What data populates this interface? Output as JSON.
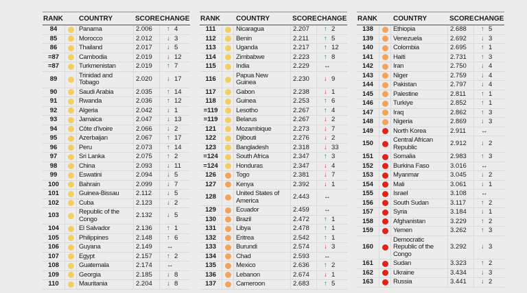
{
  "columns": {
    "rank": "RANK",
    "country": "COUNTRY",
    "score": "SCORE",
    "change": "CHANGE"
  },
  "colors": {
    "background": "#ececec",
    "dot_yellow": "#f3cf63",
    "dot_orange": "#f2a45c",
    "dot_red": "#e2231b",
    "arrow_up": "#17805c",
    "arrow_down": "#c5242b",
    "arrow_same": "#141414"
  },
  "change_icons": {
    "up": "↑",
    "down": "↓",
    "same": "↔"
  },
  "tables": [
    {
      "rows": [
        {
          "rank": "84",
          "dot": "yellow",
          "country": "Panama",
          "score": "2.006",
          "dir": "up",
          "delta": "4"
        },
        {
          "rank": "85",
          "dot": "yellow",
          "country": "Morocco",
          "score": "2.012",
          "dir": "down",
          "delta": "3"
        },
        {
          "rank": "86",
          "dot": "yellow",
          "country": "Thailand",
          "score": "2.017",
          "dir": "down",
          "delta": "5"
        },
        {
          "rank": "=87",
          "dot": "yellow",
          "country": "Cambodia",
          "score": "2.019",
          "dir": "down",
          "delta": "12"
        },
        {
          "rank": "=87",
          "dot": "yellow",
          "country": "Turkmenistan",
          "score": "2.019",
          "dir": "up",
          "delta": "7"
        },
        {
          "rank": "89",
          "dot": "yellow",
          "country": "Trinidad and Tobago",
          "score": "2.020",
          "dir": "down",
          "delta": "17"
        },
        {
          "rank": "90",
          "dot": "yellow",
          "country": "Saudi Arabia",
          "score": "2.035",
          "dir": "up",
          "delta": "14"
        },
        {
          "rank": "91",
          "dot": "yellow",
          "country": "Rwanda",
          "score": "2.036",
          "dir": "up",
          "delta": "12"
        },
        {
          "rank": "92",
          "dot": "yellow",
          "country": "Algeria",
          "score": "2.042",
          "dir": "down",
          "delta": "1"
        },
        {
          "rank": "93",
          "dot": "yellow",
          "country": "Jamaica",
          "score": "2.047",
          "dir": "down",
          "delta": "13"
        },
        {
          "rank": "94",
          "dot": "yellow",
          "country": "Côte d'Ivoire",
          "score": "2.066",
          "dir": "down",
          "delta": "2"
        },
        {
          "rank": "95",
          "dot": "yellow",
          "country": "Azerbaijan",
          "score": "2.067",
          "dir": "up",
          "delta": "17"
        },
        {
          "rank": "96",
          "dot": "yellow",
          "country": "Peru",
          "score": "2.073",
          "dir": "up",
          "delta": "14"
        },
        {
          "rank": "97",
          "dot": "yellow",
          "country": "Sri Lanka",
          "score": "2.075",
          "dir": "up",
          "delta": "2"
        },
        {
          "rank": "98",
          "dot": "yellow",
          "country": "China",
          "score": "2.093",
          "dir": "down",
          "delta": "11"
        },
        {
          "rank": "99",
          "dot": "yellow",
          "country": "Eswatini",
          "score": "2.094",
          "dir": "down",
          "delta": "5"
        },
        {
          "rank": "100",
          "dot": "yellow",
          "country": "Bahrain",
          "score": "2.099",
          "dir": "down",
          "delta": "7"
        },
        {
          "rank": "101",
          "dot": "yellow",
          "country": "Guinea-Bissau",
          "score": "2.112",
          "dir": "down",
          "delta": "5"
        },
        {
          "rank": "102",
          "dot": "yellow",
          "country": "Cuba",
          "score": "2.123",
          "dir": "down",
          "delta": "2"
        },
        {
          "rank": "103",
          "dot": "yellow",
          "country": "Republic of the Congo",
          "score": "2.132",
          "dir": "down",
          "delta": "5"
        },
        {
          "rank": "104",
          "dot": "yellow",
          "country": "El Salvador",
          "score": "2.136",
          "dir": "up",
          "delta": "1"
        },
        {
          "rank": "105",
          "dot": "yellow",
          "country": "Philippines",
          "score": "2.148",
          "dir": "up",
          "delta": "6"
        },
        {
          "rank": "106",
          "dot": "yellow",
          "country": "Guyana",
          "score": "2.149",
          "dir": "same",
          "delta": ""
        },
        {
          "rank": "107",
          "dot": "yellow",
          "country": "Egypt",
          "score": "2.157",
          "dir": "up",
          "delta": "2"
        },
        {
          "rank": "108",
          "dot": "yellow",
          "country": "Guatemala",
          "score": "2.174",
          "dir": "same",
          "delta": ""
        },
        {
          "rank": "109",
          "dot": "yellow",
          "country": "Georgia",
          "score": "2.185",
          "dir": "down",
          "delta": "8"
        },
        {
          "rank": "110",
          "dot": "yellow",
          "country": "Mauritania",
          "score": "2.204",
          "dir": "down",
          "delta": "8"
        }
      ]
    },
    {
      "rows": [
        {
          "rank": "111",
          "dot": "yellow",
          "country": "Nicaragua",
          "score": "2.207",
          "dir": "up",
          "delta": "2"
        },
        {
          "rank": "112",
          "dot": "yellow",
          "country": "Benin",
          "score": "2.211",
          "dir": "up",
          "delta": "5"
        },
        {
          "rank": "113",
          "dot": "yellow",
          "country": "Uganda",
          "score": "2.217",
          "dir": "up",
          "delta": "12"
        },
        {
          "rank": "114",
          "dot": "yellow",
          "country": "Zimbabwe",
          "score": "2.223",
          "dir": "up",
          "delta": "8"
        },
        {
          "rank": "115",
          "dot": "yellow",
          "country": "India",
          "score": "2.229",
          "dir": "same",
          "delta": ""
        },
        {
          "rank": "116",
          "dot": "yellow",
          "country": "Papua New Guinea",
          "score": "2.230",
          "dir": "down",
          "delta": "9"
        },
        {
          "rank": "117",
          "dot": "yellow",
          "country": "Gabon",
          "score": "2.238",
          "dir": "down",
          "delta": "1"
        },
        {
          "rank": "118",
          "dot": "yellow",
          "country": "Guinea",
          "score": "2.253",
          "dir": "up",
          "delta": "6"
        },
        {
          "rank": "=119",
          "dot": "yellow",
          "country": "Lesotho",
          "score": "2.267",
          "dir": "up",
          "delta": "4"
        },
        {
          "rank": "=119",
          "dot": "yellow",
          "country": "Belarus",
          "score": "2.267",
          "dir": "down",
          "delta": "2"
        },
        {
          "rank": "121",
          "dot": "yellow",
          "country": "Mozambique",
          "score": "2.273",
          "dir": "down",
          "delta": "7"
        },
        {
          "rank": "122",
          "dot": "yellow",
          "country": "Djibouti",
          "score": "2.276",
          "dir": "down",
          "delta": "2"
        },
        {
          "rank": "123",
          "dot": "yellow",
          "country": "Bangladesh",
          "score": "2.318",
          "dir": "down",
          "delta": "33"
        },
        {
          "rank": "=124",
          "dot": "yellow",
          "country": "South Africa",
          "score": "2.347",
          "dir": "up",
          "delta": "3"
        },
        {
          "rank": "=124",
          "dot": "yellow",
          "country": "Honduras",
          "score": "2.347",
          "dir": "down",
          "delta": "4"
        },
        {
          "rank": "126",
          "dot": "orange",
          "country": "Togo",
          "score": "2.381",
          "dir": "down",
          "delta": "7"
        },
        {
          "rank": "127",
          "dot": "orange",
          "country": "Kenya",
          "score": "2.392",
          "dir": "down",
          "delta": "1"
        },
        {
          "rank": "128",
          "dot": "orange",
          "country": "United States of America",
          "score": "2.443",
          "dir": "same",
          "delta": ""
        },
        {
          "rank": "129",
          "dot": "orange",
          "country": "Ecuador",
          "score": "2.459",
          "dir": "same",
          "delta": ""
        },
        {
          "rank": "130",
          "dot": "orange",
          "country": "Brazil",
          "score": "2.472",
          "dir": "up",
          "delta": "1"
        },
        {
          "rank": "131",
          "dot": "orange",
          "country": "Libya",
          "score": "2.478",
          "dir": "up",
          "delta": "1"
        },
        {
          "rank": "132",
          "dot": "orange",
          "country": "Eritrea",
          "score": "2.542",
          "dir": "up",
          "delta": "1"
        },
        {
          "rank": "133",
          "dot": "orange",
          "country": "Burundi",
          "score": "2.574",
          "dir": "down",
          "delta": "3"
        },
        {
          "rank": "134",
          "dot": "orange",
          "country": "Chad",
          "score": "2.593",
          "dir": "same",
          "delta": ""
        },
        {
          "rank": "135",
          "dot": "orange",
          "country": "Mexico",
          "score": "2.636",
          "dir": "up",
          "delta": "2"
        },
        {
          "rank": "136",
          "dot": "orange",
          "country": "Lebanon",
          "score": "2.674",
          "dir": "down",
          "delta": "1"
        },
        {
          "rank": "137",
          "dot": "orange",
          "country": "Cameroon",
          "score": "2.683",
          "dir": "up",
          "delta": "5"
        }
      ]
    },
    {
      "rows": [
        {
          "rank": "138",
          "dot": "orange",
          "country": "Ethiopia",
          "score": "2.688",
          "dir": "up",
          "delta": "5"
        },
        {
          "rank": "139",
          "dot": "orange",
          "country": "Venezuela",
          "score": "2.692",
          "dir": "down",
          "delta": "3"
        },
        {
          "rank": "140",
          "dot": "orange",
          "country": "Colombia",
          "score": "2.695",
          "dir": "up",
          "delta": "1"
        },
        {
          "rank": "141",
          "dot": "orange",
          "country": "Haiti",
          "score": "2.731",
          "dir": "up",
          "delta": "3"
        },
        {
          "rank": "142",
          "dot": "orange",
          "country": "Iran",
          "score": "2.750",
          "dir": "down",
          "delta": "4"
        },
        {
          "rank": "143",
          "dot": "orange",
          "country": "Niger",
          "score": "2.759",
          "dir": "down",
          "delta": "4"
        },
        {
          "rank": "144",
          "dot": "orange",
          "country": "Pakistan",
          "score": "2.797",
          "dir": "down",
          "delta": "4"
        },
        {
          "rank": "145",
          "dot": "orange",
          "country": "Palestine",
          "score": "2.811",
          "dir": "up",
          "delta": "1"
        },
        {
          "rank": "146",
          "dot": "orange",
          "country": "Turkiye",
          "score": "2.852",
          "dir": "up",
          "delta": "1"
        },
        {
          "rank": "147",
          "dot": "orange",
          "country": "Iraq",
          "score": "2.862",
          "dir": "up",
          "delta": "3"
        },
        {
          "rank": "148",
          "dot": "orange",
          "country": "Nigeria",
          "score": "2.869",
          "dir": "down",
          "delta": "3"
        },
        {
          "rank": "149",
          "dot": "red",
          "country": "North Korea",
          "score": "2.911",
          "dir": "same",
          "delta": ""
        },
        {
          "rank": "150",
          "dot": "red",
          "country": "Central African Republic",
          "score": "2.912",
          "dir": "down",
          "delta": "2"
        },
        {
          "rank": "151",
          "dot": "red",
          "country": "Somalia",
          "score": "2.983",
          "dir": "up",
          "delta": "3"
        },
        {
          "rank": "152",
          "dot": "red",
          "country": "Burkina Faso",
          "score": "3.016",
          "dir": "same",
          "delta": ""
        },
        {
          "rank": "153",
          "dot": "red",
          "country": "Myanmar",
          "score": "3.045",
          "dir": "down",
          "delta": "2"
        },
        {
          "rank": "154",
          "dot": "red",
          "country": "Mali",
          "score": "3.061",
          "dir": "down",
          "delta": "1"
        },
        {
          "rank": "155",
          "dot": "red",
          "country": "Israel",
          "score": "3.108",
          "dir": "same",
          "delta": ""
        },
        {
          "rank": "156",
          "dot": "red",
          "country": "South Sudan",
          "score": "3.117",
          "dir": "up",
          "delta": "2"
        },
        {
          "rank": "157",
          "dot": "red",
          "country": "Syria",
          "score": "3.184",
          "dir": "down",
          "delta": "1"
        },
        {
          "rank": "158",
          "dot": "red",
          "country": "Afghanistan",
          "score": "3.229",
          "dir": "up",
          "delta": "2"
        },
        {
          "rank": "159",
          "dot": "red",
          "country": "Yemen",
          "score": "3.262",
          "dir": "up",
          "delta": "3"
        },
        {
          "rank": "160",
          "dot": "red",
          "country": "Democratic Republic of the Congo",
          "score": "3.292",
          "dir": "down",
          "delta": "3"
        },
        {
          "rank": "161",
          "dot": "red",
          "country": "Sudan",
          "score": "3.323",
          "dir": "up",
          "delta": "2"
        },
        {
          "rank": "162",
          "dot": "red",
          "country": "Ukraine",
          "score": "3.434",
          "dir": "down",
          "delta": "3"
        },
        {
          "rank": "163",
          "dot": "red",
          "country": "Russia",
          "score": "3.441",
          "dir": "down",
          "delta": "2"
        }
      ]
    }
  ]
}
